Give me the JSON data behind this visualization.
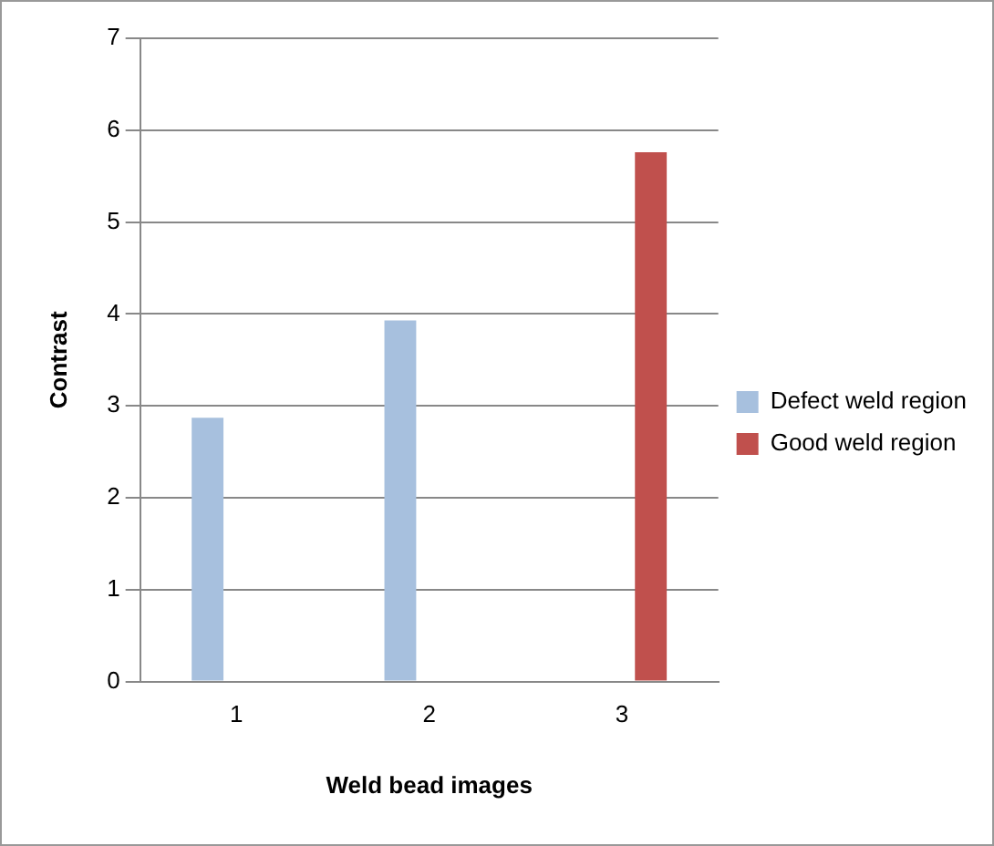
{
  "chart_data": {
    "type": "bar",
    "xlabel": "Weld bead images",
    "ylabel": "Contrast",
    "categories": [
      "1",
      "2",
      "3"
    ],
    "series": [
      {
        "name": "Defect weld region",
        "color": "#a7c0de",
        "values": [
          2.87,
          3.93,
          null
        ]
      },
      {
        "name": "Good weld region",
        "color": "#c0504d",
        "values": [
          null,
          null,
          5.76
        ]
      }
    ],
    "ylim": [
      0,
      7
    ],
    "yticks": [
      0,
      1,
      2,
      3,
      4,
      5,
      6,
      7
    ],
    "grid": "y",
    "legend": "right"
  }
}
